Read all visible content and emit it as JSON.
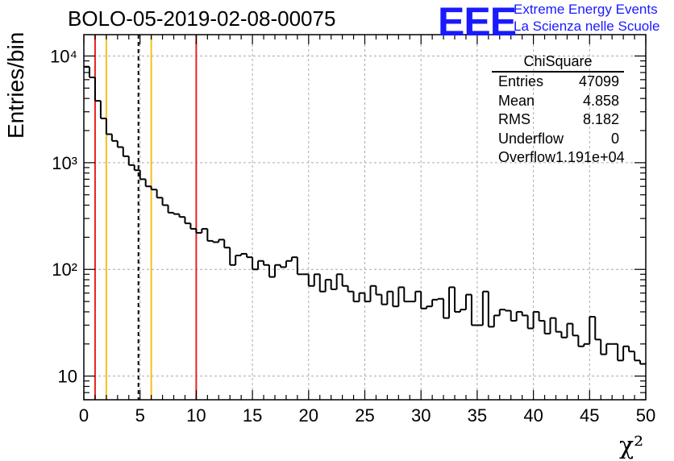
{
  "title": "BOLO-05-2019-02-08-00075",
  "logo": {
    "mark": "EEE",
    "line1": "Extreme Energy Events",
    "line2": "La Scienza nelle Scuole",
    "color": "#1a1aff"
  },
  "stats": {
    "title": "ChiSquare",
    "rows": [
      {
        "label": "Entries",
        "value": "47099"
      },
      {
        "label": "Mean",
        "value": "4.858"
      },
      {
        "label": "RMS",
        "value": "8.182"
      },
      {
        "label": "Underflow",
        "value": "0"
      },
      {
        "label": "Overflow",
        "value": "1.191e+04"
      }
    ]
  },
  "chart_data": {
    "type": "histogram",
    "title": "BOLO-05-2019-02-08-00075",
    "xlabel": "χ²",
    "ylabel": "Entries/bin",
    "xlim": [
      0,
      50
    ],
    "ylim": [
      6,
      15850
    ],
    "yscale": "log",
    "bin_width": 0.5,
    "grid": true,
    "xticks": [
      0,
      5,
      10,
      15,
      20,
      25,
      30,
      35,
      40,
      45,
      50
    ],
    "yticks": [
      {
        "value": 10,
        "label": "10"
      },
      {
        "value": 100,
        "label": "10²"
      },
      {
        "value": 1000,
        "label": "10³"
      },
      {
        "value": 10000,
        "label": "10⁴"
      }
    ],
    "values": [
      7900,
      6300,
      3800,
      2600,
      1850,
      1600,
      1400,
      1150,
      950,
      850,
      700,
      600,
      560,
      470,
      400,
      340,
      330,
      310,
      270,
      240,
      220,
      240,
      185,
      180,
      190,
      160,
      110,
      135,
      140,
      130,
      100,
      120,
      110,
      85,
      110,
      105,
      120,
      130,
      90,
      90,
      70,
      90,
      62,
      80,
      65,
      90,
      70,
      62,
      50,
      60,
      50,
      70,
      58,
      47,
      62,
      45,
      68,
      50,
      50,
      62,
      43,
      45,
      52,
      53,
      35,
      68,
      40,
      42,
      58,
      30,
      30,
      62,
      29,
      37,
      42,
      41,
      33,
      40,
      37,
      28,
      40,
      33,
      25,
      35,
      26,
      23,
      31,
      24,
      19,
      20,
      36,
      22,
      16,
      20,
      20,
      14,
      19,
      17,
      14,
      13
    ],
    "vertical_lines": [
      {
        "x": 1,
        "color": "#e8231a",
        "style": "solid"
      },
      {
        "x": 2,
        "color": "#f4c01b",
        "style": "solid"
      },
      {
        "x": 4.858,
        "color": "#000000",
        "style": "dashed"
      },
      {
        "x": 6,
        "color": "#f4c01b",
        "style": "solid"
      },
      {
        "x": 10,
        "color": "#e8231a",
        "style": "solid"
      }
    ]
  }
}
